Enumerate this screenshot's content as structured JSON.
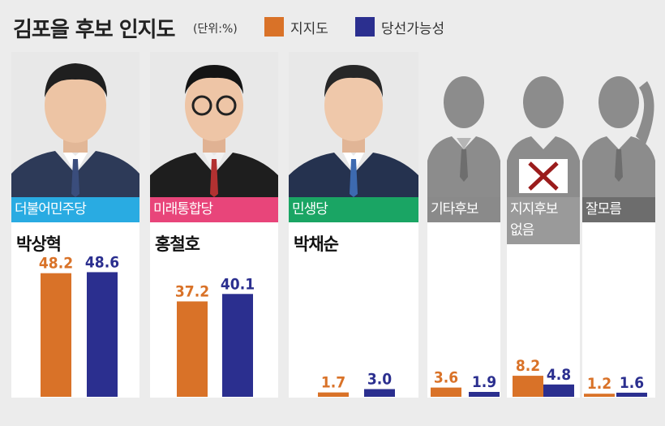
{
  "header": {
    "title": "김포을 후보 인지도",
    "unit": "(단위:%)"
  },
  "legend": [
    {
      "label": "지지도",
      "color": "#d97228"
    },
    {
      "label": "당선가능성",
      "color": "#2b2f8f"
    }
  ],
  "candidates": [
    {
      "party": "더불어민주당",
      "party_color": "#29abe2",
      "name": "박상혁"
    },
    {
      "party": "미래통합당",
      "party_color": "#e8457a",
      "name": "홍철호"
    },
    {
      "party": "민생당",
      "party_color": "#1aa564",
      "name": "박채순"
    },
    {
      "party": "기타후보",
      "party_color": "#8a8a8a",
      "name": ""
    },
    {
      "party": "지지후보\n없음",
      "party_color": "#9a9a9a",
      "name": ""
    },
    {
      "party": "잘모름",
      "party_color": "#6d6d6d",
      "name": ""
    }
  ],
  "chart_data": {
    "type": "bar",
    "title": "김포을 후보 인지도",
    "categories": [
      "박상혁",
      "홍철호",
      "박채순",
      "기타후보",
      "지지후보 없음",
      "잘모름"
    ],
    "series": [
      {
        "name": "지지도",
        "values": [
          48.2,
          37.2,
          1.7,
          3.6,
          8.2,
          1.2
        ],
        "color": "#d97228"
      },
      {
        "name": "당선가능성",
        "values": [
          48.6,
          40.1,
          3.0,
          1.9,
          4.8,
          1.6
        ],
        "color": "#2b2f8f"
      }
    ],
    "value_labels": [
      [
        "48.2",
        "48.6"
      ],
      [
        "37.2",
        "40.1"
      ],
      [
        "1.7",
        "3.0"
      ],
      [
        "3.6",
        "1.9"
      ],
      [
        "8.2",
        "4.8"
      ],
      [
        "1.2",
        "1.6"
      ]
    ],
    "unit": "%"
  }
}
